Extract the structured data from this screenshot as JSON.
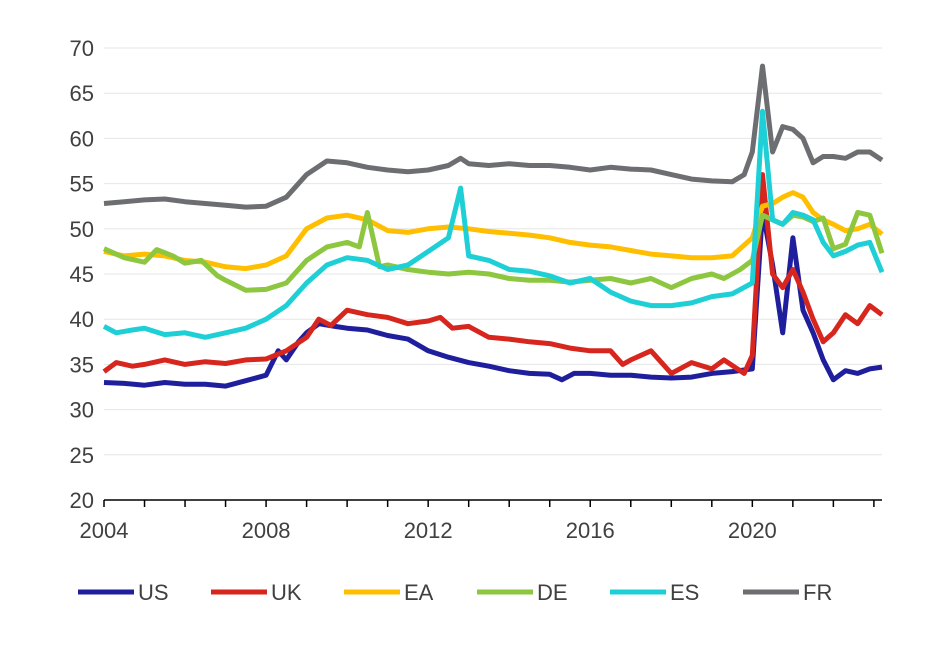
{
  "chart_data": {
    "type": "line",
    "title": "",
    "xlabel": "",
    "ylabel": "",
    "xlim": [
      2004,
      2023.2
    ],
    "ylim": [
      20,
      70
    ],
    "y_ticks": [
      20,
      25,
      30,
      35,
      40,
      45,
      50,
      55,
      60,
      65,
      70
    ],
    "x_ticks": [
      2004,
      2008,
      2012,
      2016,
      2020
    ],
    "y_tick_labels": [
      "20",
      "25",
      "30",
      "35",
      "40",
      "45",
      "50",
      "55",
      "60",
      "65",
      "70"
    ],
    "x_tick_labels": [
      "2004",
      "2008",
      "2012",
      "2016",
      "2020"
    ],
    "grid": "horizontal",
    "legend_position": "bottom",
    "series": [
      {
        "name": "US",
        "color": "#1f1f9e",
        "points": [
          [
            2004.0,
            33.0
          ],
          [
            2004.5,
            32.9
          ],
          [
            2005.0,
            32.7
          ],
          [
            2005.5,
            33.0
          ],
          [
            2006.0,
            32.8
          ],
          [
            2006.5,
            32.8
          ],
          [
            2007.0,
            32.6
          ],
          [
            2007.5,
            33.2
          ],
          [
            2008.0,
            33.8
          ],
          [
            2008.3,
            36.5
          ],
          [
            2008.5,
            35.5
          ],
          [
            2008.8,
            37.5
          ],
          [
            2009.0,
            38.5
          ],
          [
            2009.3,
            39.5
          ],
          [
            2009.7,
            39.2
          ],
          [
            2010.0,
            39.0
          ],
          [
            2010.5,
            38.8
          ],
          [
            2011.0,
            38.2
          ],
          [
            2011.5,
            37.8
          ],
          [
            2012.0,
            36.5
          ],
          [
            2012.5,
            35.8
          ],
          [
            2013.0,
            35.2
          ],
          [
            2013.5,
            34.8
          ],
          [
            2014.0,
            34.3
          ],
          [
            2014.5,
            34.0
          ],
          [
            2015.0,
            33.9
          ],
          [
            2015.3,
            33.3
          ],
          [
            2015.6,
            34.0
          ],
          [
            2016.0,
            34.0
          ],
          [
            2016.5,
            33.8
          ],
          [
            2017.0,
            33.8
          ],
          [
            2017.5,
            33.6
          ],
          [
            2018.0,
            33.5
          ],
          [
            2018.5,
            33.6
          ],
          [
            2019.0,
            34.0
          ],
          [
            2019.5,
            34.2
          ],
          [
            2020.0,
            34.5
          ],
          [
            2020.25,
            52.0
          ],
          [
            2020.5,
            46.0
          ],
          [
            2020.75,
            38.5
          ],
          [
            2021.0,
            49.0
          ],
          [
            2021.25,
            41.0
          ],
          [
            2021.5,
            38.5
          ],
          [
            2021.75,
            35.5
          ],
          [
            2022.0,
            33.3
          ],
          [
            2022.3,
            34.3
          ],
          [
            2022.6,
            34.0
          ],
          [
            2022.9,
            34.5
          ],
          [
            2023.2,
            34.7
          ]
        ]
      },
      {
        "name": "UK",
        "color": "#d7261e",
        "points": [
          [
            2004.0,
            34.2
          ],
          [
            2004.3,
            35.2
          ],
          [
            2004.7,
            34.8
          ],
          [
            2005.0,
            35.0
          ],
          [
            2005.5,
            35.5
          ],
          [
            2006.0,
            35.0
          ],
          [
            2006.5,
            35.3
          ],
          [
            2007.0,
            35.1
          ],
          [
            2007.5,
            35.5
          ],
          [
            2008.0,
            35.6
          ],
          [
            2008.5,
            36.5
          ],
          [
            2009.0,
            38.0
          ],
          [
            2009.3,
            40.0
          ],
          [
            2009.6,
            39.3
          ],
          [
            2010.0,
            41.0
          ],
          [
            2010.5,
            40.5
          ],
          [
            2011.0,
            40.2
          ],
          [
            2011.5,
            39.5
          ],
          [
            2012.0,
            39.8
          ],
          [
            2012.3,
            40.2
          ],
          [
            2012.6,
            39.0
          ],
          [
            2013.0,
            39.2
          ],
          [
            2013.5,
            38.0
          ],
          [
            2014.0,
            37.8
          ],
          [
            2014.5,
            37.5
          ],
          [
            2015.0,
            37.3
          ],
          [
            2015.5,
            36.8
          ],
          [
            2016.0,
            36.5
          ],
          [
            2016.5,
            36.5
          ],
          [
            2016.8,
            35.0
          ],
          [
            2017.0,
            35.5
          ],
          [
            2017.5,
            36.5
          ],
          [
            2018.0,
            34.0
          ],
          [
            2018.5,
            35.2
          ],
          [
            2019.0,
            34.5
          ],
          [
            2019.3,
            35.5
          ],
          [
            2019.8,
            34.0
          ],
          [
            2020.0,
            36.0
          ],
          [
            2020.25,
            56.0
          ],
          [
            2020.5,
            45.0
          ],
          [
            2020.75,
            43.5
          ],
          [
            2021.0,
            45.5
          ],
          [
            2021.25,
            43.0
          ],
          [
            2021.5,
            40.0
          ],
          [
            2021.75,
            37.5
          ],
          [
            2022.0,
            38.5
          ],
          [
            2022.3,
            40.5
          ],
          [
            2022.6,
            39.5
          ],
          [
            2022.9,
            41.5
          ],
          [
            2023.2,
            40.5
          ]
        ]
      },
      {
        "name": "EA",
        "color": "#ffbf00",
        "points": [
          [
            2004.0,
            47.5
          ],
          [
            2004.5,
            47.0
          ],
          [
            2005.0,
            47.2
          ],
          [
            2005.5,
            47.0
          ],
          [
            2006.0,
            46.5
          ],
          [
            2006.5,
            46.3
          ],
          [
            2007.0,
            45.8
          ],
          [
            2007.5,
            45.6
          ],
          [
            2008.0,
            46.0
          ],
          [
            2008.5,
            47.0
          ],
          [
            2009.0,
            50.0
          ],
          [
            2009.5,
            51.2
          ],
          [
            2010.0,
            51.5
          ],
          [
            2010.5,
            51.0
          ],
          [
            2011.0,
            49.8
          ],
          [
            2011.5,
            49.6
          ],
          [
            2012.0,
            50.0
          ],
          [
            2012.5,
            50.2
          ],
          [
            2013.0,
            50.0
          ],
          [
            2013.5,
            49.7
          ],
          [
            2014.0,
            49.5
          ],
          [
            2014.5,
            49.3
          ],
          [
            2015.0,
            49.0
          ],
          [
            2015.5,
            48.5
          ],
          [
            2016.0,
            48.2
          ],
          [
            2016.5,
            48.0
          ],
          [
            2017.0,
            47.6
          ],
          [
            2017.5,
            47.2
          ],
          [
            2018.0,
            47.0
          ],
          [
            2018.5,
            46.8
          ],
          [
            2019.0,
            46.8
          ],
          [
            2019.5,
            47.0
          ],
          [
            2020.0,
            49.0
          ],
          [
            2020.25,
            52.5
          ],
          [
            2020.5,
            52.8
          ],
          [
            2020.75,
            53.5
          ],
          [
            2021.0,
            54.0
          ],
          [
            2021.25,
            53.5
          ],
          [
            2021.5,
            51.8
          ],
          [
            2021.75,
            51.0
          ],
          [
            2022.0,
            50.5
          ],
          [
            2022.3,
            49.8
          ],
          [
            2022.6,
            50.0
          ],
          [
            2022.9,
            50.5
          ],
          [
            2023.2,
            49.4
          ]
        ]
      },
      {
        "name": "DE",
        "color": "#8dc63f",
        "points": [
          [
            2004.0,
            47.8
          ],
          [
            2004.5,
            46.8
          ],
          [
            2005.0,
            46.3
          ],
          [
            2005.3,
            47.7
          ],
          [
            2005.7,
            47.0
          ],
          [
            2006.0,
            46.2
          ],
          [
            2006.4,
            46.5
          ],
          [
            2006.8,
            44.8
          ],
          [
            2007.0,
            44.3
          ],
          [
            2007.5,
            43.2
          ],
          [
            2008.0,
            43.3
          ],
          [
            2008.5,
            44.0
          ],
          [
            2009.0,
            46.5
          ],
          [
            2009.5,
            48.0
          ],
          [
            2010.0,
            48.5
          ],
          [
            2010.3,
            48.0
          ],
          [
            2010.5,
            51.8
          ],
          [
            2010.8,
            45.8
          ],
          [
            2011.0,
            46.0
          ],
          [
            2011.5,
            45.5
          ],
          [
            2012.0,
            45.2
          ],
          [
            2012.5,
            45.0
          ],
          [
            2013.0,
            45.2
          ],
          [
            2013.5,
            45.0
          ],
          [
            2014.0,
            44.5
          ],
          [
            2014.5,
            44.3
          ],
          [
            2015.0,
            44.3
          ],
          [
            2015.5,
            44.1
          ],
          [
            2016.0,
            44.3
          ],
          [
            2016.5,
            44.5
          ],
          [
            2017.0,
            44.0
          ],
          [
            2017.5,
            44.5
          ],
          [
            2018.0,
            43.5
          ],
          [
            2018.5,
            44.5
          ],
          [
            2019.0,
            45.0
          ],
          [
            2019.3,
            44.5
          ],
          [
            2019.7,
            45.5
          ],
          [
            2020.0,
            46.5
          ],
          [
            2020.25,
            51.5
          ],
          [
            2020.5,
            51.0
          ],
          [
            2020.75,
            50.5
          ],
          [
            2021.0,
            51.5
          ],
          [
            2021.25,
            51.3
          ],
          [
            2021.5,
            50.8
          ],
          [
            2021.75,
            51.2
          ],
          [
            2022.0,
            47.8
          ],
          [
            2022.3,
            48.3
          ],
          [
            2022.6,
            51.8
          ],
          [
            2022.9,
            51.5
          ],
          [
            2023.2,
            47.3
          ]
        ]
      },
      {
        "name": "ES",
        "color": "#1ecfd6",
        "points": [
          [
            2004.0,
            39.2
          ],
          [
            2004.3,
            38.5
          ],
          [
            2004.7,
            38.8
          ],
          [
            2005.0,
            39.0
          ],
          [
            2005.5,
            38.3
          ],
          [
            2006.0,
            38.5
          ],
          [
            2006.5,
            38.0
          ],
          [
            2007.0,
            38.5
          ],
          [
            2007.5,
            39.0
          ],
          [
            2008.0,
            40.0
          ],
          [
            2008.5,
            41.5
          ],
          [
            2009.0,
            44.0
          ],
          [
            2009.5,
            46.0
          ],
          [
            2010.0,
            46.8
          ],
          [
            2010.5,
            46.5
          ],
          [
            2011.0,
            45.5
          ],
          [
            2011.5,
            46.0
          ],
          [
            2012.0,
            47.5
          ],
          [
            2012.5,
            49.0
          ],
          [
            2012.8,
            54.5
          ],
          [
            2013.0,
            47.0
          ],
          [
            2013.5,
            46.5
          ],
          [
            2014.0,
            45.5
          ],
          [
            2014.5,
            45.3
          ],
          [
            2015.0,
            44.8
          ],
          [
            2015.5,
            44.0
          ],
          [
            2016.0,
            44.5
          ],
          [
            2016.5,
            43.0
          ],
          [
            2017.0,
            42.0
          ],
          [
            2017.5,
            41.5
          ],
          [
            2018.0,
            41.5
          ],
          [
            2018.5,
            41.8
          ],
          [
            2019.0,
            42.5
          ],
          [
            2019.5,
            42.8
          ],
          [
            2020.0,
            44.0
          ],
          [
            2020.25,
            63.0
          ],
          [
            2020.5,
            51.0
          ],
          [
            2020.75,
            50.5
          ],
          [
            2021.0,
            51.8
          ],
          [
            2021.25,
            51.5
          ],
          [
            2021.5,
            51.0
          ],
          [
            2021.75,
            48.5
          ],
          [
            2022.0,
            47.0
          ],
          [
            2022.3,
            47.5
          ],
          [
            2022.6,
            48.2
          ],
          [
            2022.9,
            48.5
          ],
          [
            2023.2,
            45.2
          ]
        ]
      },
      {
        "name": "FR",
        "color": "#6d6e71",
        "points": [
          [
            2004.0,
            52.8
          ],
          [
            2004.5,
            53.0
          ],
          [
            2005.0,
            53.2
          ],
          [
            2005.5,
            53.3
          ],
          [
            2006.0,
            53.0
          ],
          [
            2006.5,
            52.8
          ],
          [
            2007.0,
            52.6
          ],
          [
            2007.5,
            52.4
          ],
          [
            2008.0,
            52.5
          ],
          [
            2008.5,
            53.5
          ],
          [
            2009.0,
            56.0
          ],
          [
            2009.5,
            57.5
          ],
          [
            2010.0,
            57.3
          ],
          [
            2010.5,
            56.8
          ],
          [
            2011.0,
            56.5
          ],
          [
            2011.5,
            56.3
          ],
          [
            2012.0,
            56.5
          ],
          [
            2012.5,
            57.0
          ],
          [
            2012.8,
            57.8
          ],
          [
            2013.0,
            57.2
          ],
          [
            2013.5,
            57.0
          ],
          [
            2014.0,
            57.2
          ],
          [
            2014.5,
            57.0
          ],
          [
            2015.0,
            57.0
          ],
          [
            2015.5,
            56.8
          ],
          [
            2016.0,
            56.5
          ],
          [
            2016.5,
            56.8
          ],
          [
            2017.0,
            56.6
          ],
          [
            2017.5,
            56.5
          ],
          [
            2018.0,
            56.0
          ],
          [
            2018.5,
            55.5
          ],
          [
            2019.0,
            55.3
          ],
          [
            2019.5,
            55.2
          ],
          [
            2019.8,
            56.0
          ],
          [
            2020.0,
            58.5
          ],
          [
            2020.25,
            68.0
          ],
          [
            2020.5,
            58.5
          ],
          [
            2020.75,
            61.3
          ],
          [
            2021.0,
            61.0
          ],
          [
            2021.25,
            60.0
          ],
          [
            2021.5,
            57.3
          ],
          [
            2021.75,
            58.0
          ],
          [
            2022.0,
            58.0
          ],
          [
            2022.3,
            57.8
          ],
          [
            2022.6,
            58.5
          ],
          [
            2022.9,
            58.5
          ],
          [
            2023.2,
            57.6
          ]
        ]
      }
    ]
  }
}
